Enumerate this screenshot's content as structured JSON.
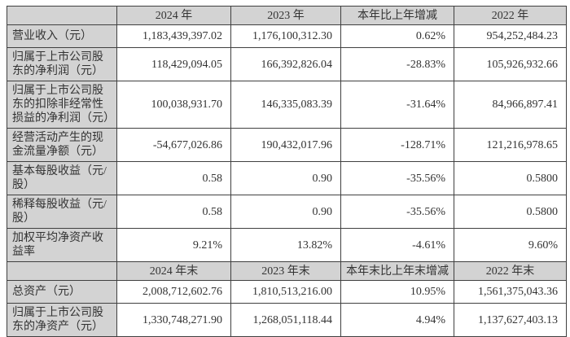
{
  "table": {
    "colors": {
      "header_bg": "#d3d3d3",
      "label_bg": "#d3d3d3",
      "border": "#404040",
      "text": "#333333",
      "cell_bg": "#ffffff"
    },
    "sections": [
      {
        "header": [
          "",
          "2024 年",
          "2023 年",
          "本年比上年增减",
          "2022 年"
        ],
        "rows": [
          {
            "label": "营业收入（元）",
            "values": [
              "1,183,439,397.02",
              "1,176,100,312.30",
              "0.62%",
              "954,252,484.23"
            ]
          },
          {
            "label": "归属于上市公司股东的净利润（元）",
            "values": [
              "118,429,094.05",
              "166,392,826.04",
              "-28.83%",
              "105,926,932.66"
            ]
          },
          {
            "label": "归属于上市公司股东的扣除非经常性损益的净利润（元）",
            "values": [
              "100,038,931.70",
              "146,335,083.39",
              "-31.64%",
              "84,966,897.41"
            ]
          },
          {
            "label": "经营活动产生的现金流量净额（元）",
            "values": [
              "-54,677,026.86",
              "190,432,017.96",
              "-128.71%",
              "121,216,978.65"
            ]
          },
          {
            "label": "基本每股收益（元/股）",
            "values": [
              "0.58",
              "0.90",
              "-35.56%",
              "0.5800"
            ]
          },
          {
            "label": "稀释每股收益（元/股）",
            "values": [
              "0.58",
              "0.90",
              "-35.56%",
              "0.5800"
            ]
          },
          {
            "label": "加权平均净资产收益率",
            "values": [
              "9.21%",
              "13.82%",
              "-4.61%",
              "9.60%"
            ]
          }
        ]
      },
      {
        "header": [
          "",
          "2024 年末",
          "2023 年末",
          "本年末比上年末增减",
          "2022 年末"
        ],
        "rows": [
          {
            "label": "总资产（元）",
            "values": [
              "2,008,712,602.76",
              "1,810,513,216.00",
              "10.95%",
              "1,561,375,043.36"
            ]
          },
          {
            "label": "归属于上市公司股东的净资产（元）",
            "values": [
              "1,330,748,271.90",
              "1,268,051,118.44",
              "4.94%",
              "1,137,627,403.13"
            ]
          }
        ]
      }
    ]
  }
}
